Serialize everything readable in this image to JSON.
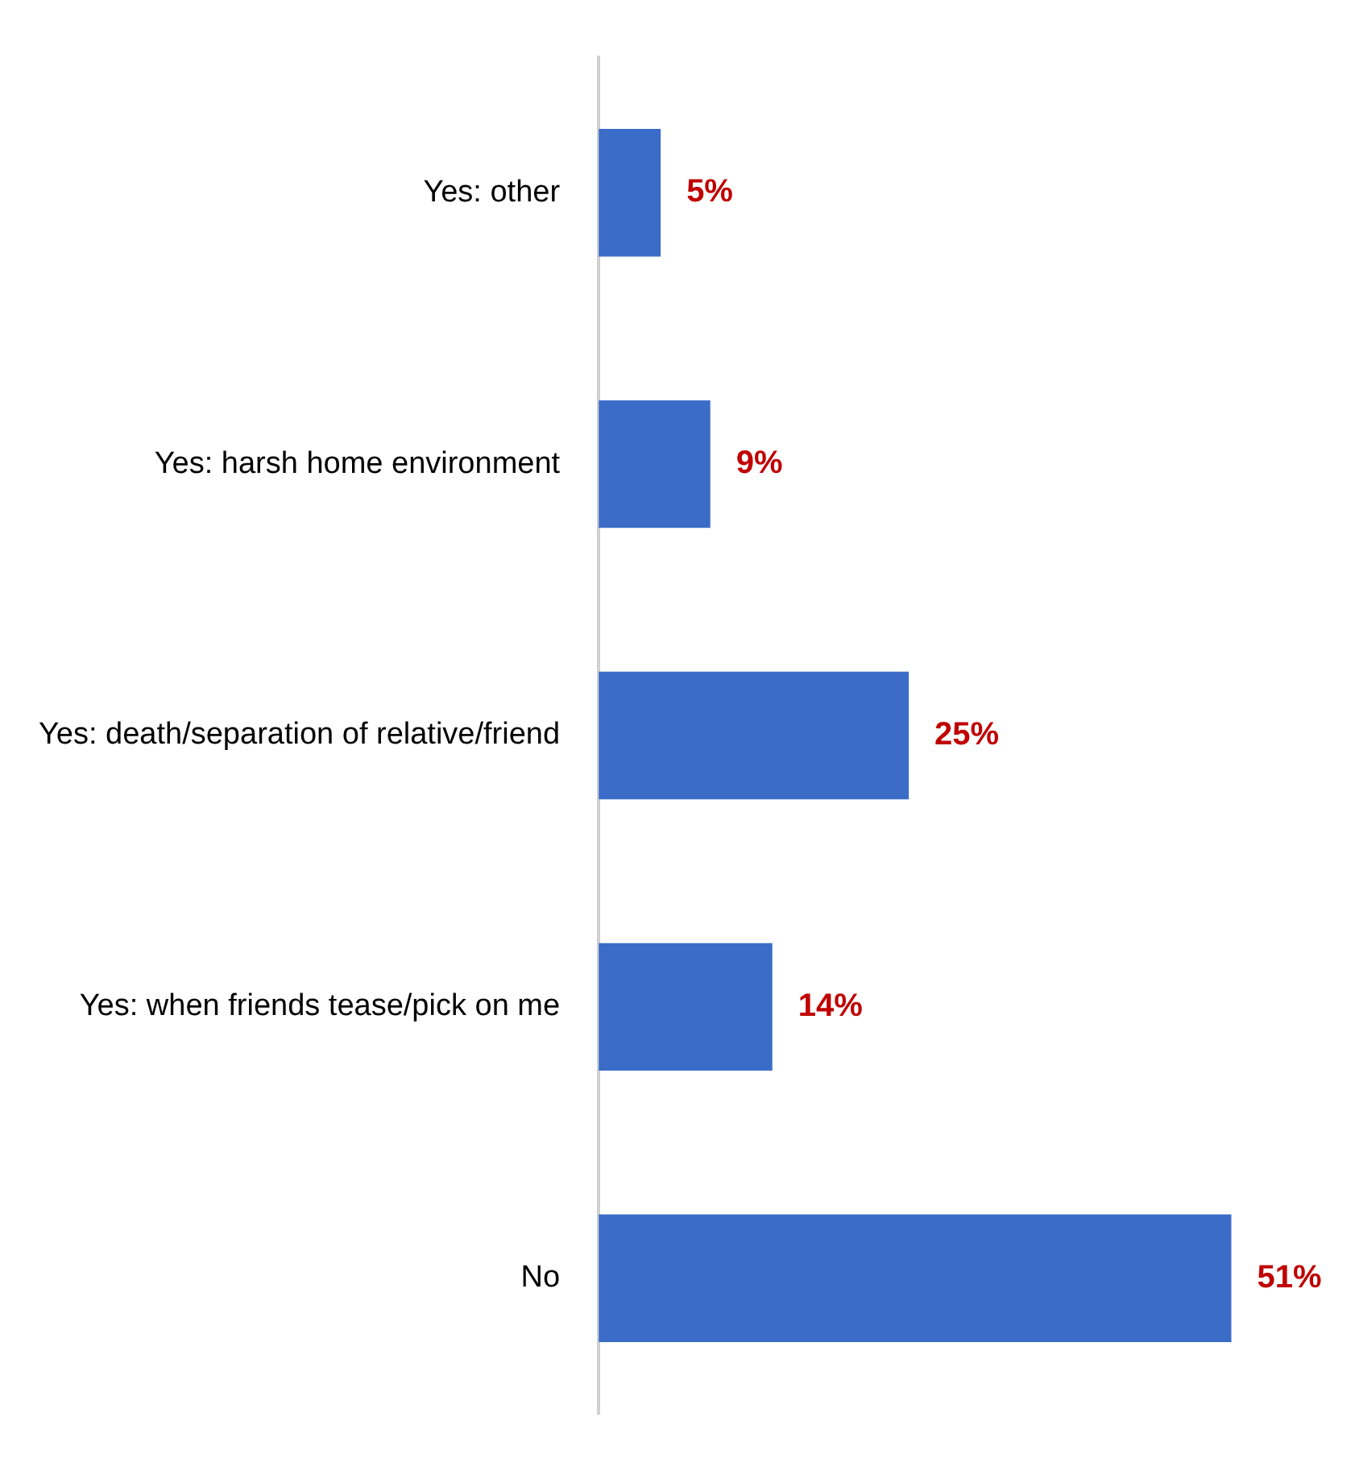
{
  "chart_data": {
    "type": "bar",
    "orientation": "horizontal",
    "categories": [
      "Yes: other",
      "Yes: harsh home environment",
      "Yes: death/separation of relative/friend",
      "Yes: when friends tease/pick on me",
      "No"
    ],
    "values": [
      5,
      9,
      25,
      14,
      51
    ],
    "value_labels": [
      "5%",
      "9%",
      "25%",
      "14%",
      "51%"
    ],
    "color": "#3b6cc8",
    "legend": false,
    "tick_labels": "y"
  }
}
